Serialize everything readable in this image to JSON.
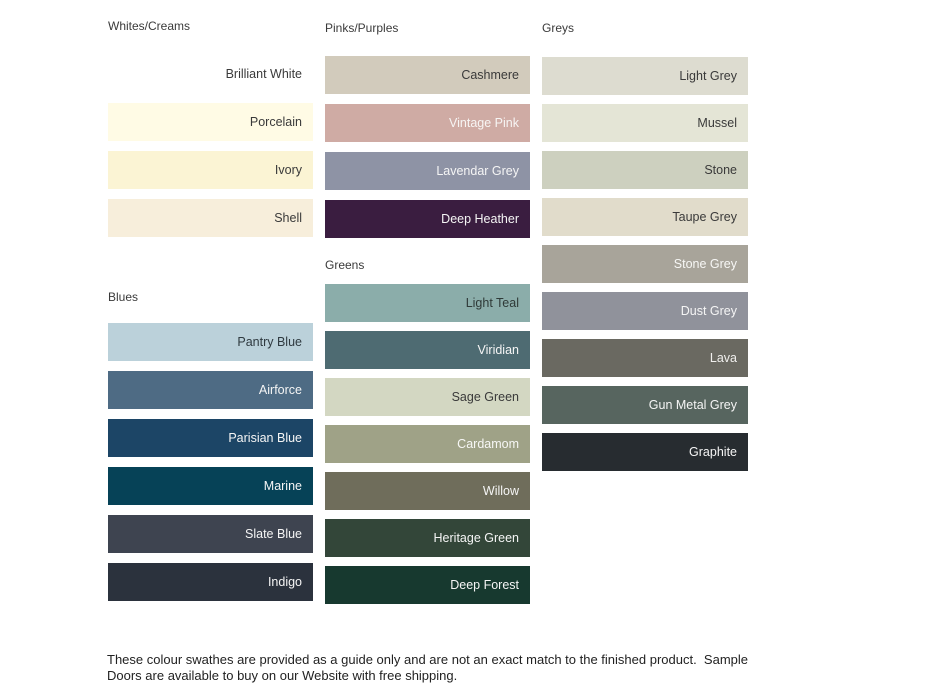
{
  "groups": {
    "whites_creams": {
      "title": "Whites/Creams",
      "swatches": [
        {
          "name": "Brilliant White",
          "color": "#ffffff",
          "text_color": "#3a3a3a"
        },
        {
          "name": "Porcelain",
          "color": "#fffbe5",
          "text_color": "#3a3a3a"
        },
        {
          "name": "Ivory",
          "color": "#fbf4d4",
          "text_color": "#3a3a3a"
        },
        {
          "name": "Shell",
          "color": "#f7eedb",
          "text_color": "#3a3a3a"
        }
      ]
    },
    "blues": {
      "title": "Blues",
      "swatches": [
        {
          "name": "Pantry Blue",
          "color": "#bbd1da",
          "text_color": "#2f3a40"
        },
        {
          "name": "Airforce",
          "color": "#4e6b84",
          "text_color": "#f5f5f5"
        },
        {
          "name": "Parisian Blue",
          "color": "#1c4566",
          "text_color": "#f5f5f5"
        },
        {
          "name": "Marine",
          "color": "#064257",
          "text_color": "#f5f5f5"
        },
        {
          "name": "Slate Blue",
          "color": "#3e4450",
          "text_color": "#f5f5f5"
        },
        {
          "name": "Indigo",
          "color": "#2b323d",
          "text_color": "#f5f5f5"
        }
      ]
    },
    "pinks_purples": {
      "title": "Pinks/Purples",
      "swatches": [
        {
          "name": "Cashmere",
          "color": "#d2cbbc",
          "text_color": "#3a3a3a"
        },
        {
          "name": "Vintage Pink",
          "color": "#cfaba4",
          "text_color": "#f7f5f4"
        },
        {
          "name": "Lavendar Grey",
          "color": "#8e93a5",
          "text_color": "#f5f5f5"
        },
        {
          "name": "Deep Heather",
          "color": "#3a1d40",
          "text_color": "#f5f5f5"
        }
      ]
    },
    "greens": {
      "title": "Greens",
      "swatches": [
        {
          "name": "Light Teal",
          "color": "#8badaa",
          "text_color": "#2f3a38"
        },
        {
          "name": "Viridian",
          "color": "#4e6b72",
          "text_color": "#f5f5f5"
        },
        {
          "name": "Sage Green",
          "color": "#d3d7c2",
          "text_color": "#3a3a3a"
        },
        {
          "name": "Cardamom",
          "color": "#9fa287",
          "text_color": "#f7f7f5"
        },
        {
          "name": "Willow",
          "color": "#6f6d5b",
          "text_color": "#f5f5f5"
        },
        {
          "name": "Heritage Green",
          "color": "#334639",
          "text_color": "#f5f5f5"
        },
        {
          "name": "Deep Forest",
          "color": "#17392f",
          "text_color": "#f5f5f5"
        }
      ]
    },
    "greys": {
      "title": "Greys",
      "swatches": [
        {
          "name": "Light Grey",
          "color": "#dddcd0",
          "text_color": "#3a3a3a"
        },
        {
          "name": "Mussel",
          "color": "#e4e5d6",
          "text_color": "#3a3a3a"
        },
        {
          "name": "Stone",
          "color": "#cdd0bf",
          "text_color": "#3a3a3a"
        },
        {
          "name": "Taupe Grey",
          "color": "#e1dccb",
          "text_color": "#3a3a3a"
        },
        {
          "name": "Stone Grey",
          "color": "#a8a49a",
          "text_color": "#f7f7f5"
        },
        {
          "name": "Dust Grey",
          "color": "#90929b",
          "text_color": "#f5f5f5"
        },
        {
          "name": "Lava",
          "color": "#6a6961",
          "text_color": "#f0efed"
        },
        {
          "name": "Gun Metal Grey",
          "color": "#57655f",
          "text_color": "#f5f5f5"
        },
        {
          "name": "Graphite",
          "color": "#272c30",
          "text_color": "#f5f5f5"
        }
      ]
    }
  },
  "footnote": {
    "line1": "These colour swathes are provided as a guide only and are not an exact match to the finished product.  Sample",
    "line2": "Doors are available to buy on our Website with free shipping."
  }
}
